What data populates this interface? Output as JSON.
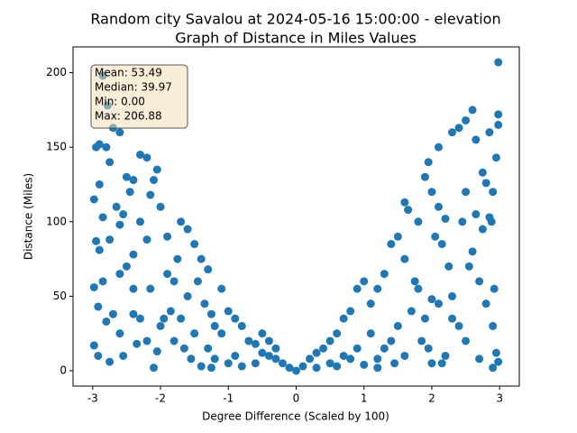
{
  "chart_data": {
    "type": "scatter",
    "title": "Random city Savalou at 2024-05-16 15:00:00  - elevation",
    "subtitle": "Graph of Distance in Miles Values",
    "x_label": "Degree Difference (Scaled by 100)",
    "y_label": "Distance (Miles)",
    "annotation": [
      "Mean: 53.49",
      "Median: 39.97",
      "Min: 0.00",
      "Max: 206.88"
    ],
    "color": "#1f77b4",
    "xlim": [
      -3.29,
      3.29
    ],
    "ylim": [
      -10.3,
      217.3
    ],
    "xticks": [
      -3,
      -2,
      -1,
      0,
      1,
      2,
      3
    ],
    "yticks": [
      0,
      50,
      100,
      150,
      200
    ],
    "x": [
      -2.85,
      -2.78,
      -2.9,
      -2.95,
      -2.8,
      -2.7,
      -2.6,
      -2.75,
      -2.98,
      -2.9,
      -2.85,
      -2.95,
      -2.9,
      -2.75,
      -2.6,
      -2.55,
      -2.45,
      -2.4,
      -2.3,
      -2.2,
      -2.05,
      -2.1,
      -2.15,
      -2.0,
      -2.3,
      -2.2,
      -2.4,
      -2.5,
      -2.6,
      -2.98,
      -2.92,
      -2.8,
      -2.7,
      -2.6,
      -2.98,
      -2.92,
      -2.75,
      -2.55,
      -2.4,
      -2.3,
      -2.35,
      -2.2,
      -2.05,
      -2.1,
      -1.95,
      -1.85,
      -1.8,
      -1.75,
      -1.9,
      -1.7,
      -1.6,
      -1.5,
      -1.4,
      -1.3,
      -1.45,
      -1.6,
      -1.7,
      -1.8,
      -1.65,
      -1.55,
      -1.4,
      -1.35,
      -1.25,
      -1.2,
      -1.1,
      -1.0,
      -0.9,
      -0.8,
      -0.7,
      -0.6,
      -0.5,
      -0.4,
      -0.3,
      -0.2,
      -0.1,
      0.0,
      -1.3,
      -1.2,
      -1.0,
      -0.9,
      -0.8,
      -0.6,
      -0.5,
      -0.4,
      -0.3,
      -1.5,
      -2.5,
      -2.65,
      -2.85,
      -2.4,
      -2.15,
      -1.9,
      -2.0,
      -1.1,
      -1.25,
      0.1,
      0.2,
      0.3,
      0.4,
      0.5,
      0.6,
      0.7,
      0.8,
      0.9,
      1.0,
      0.5,
      0.7,
      0.9,
      1.0,
      1.1,
      1.2,
      1.3,
      1.4,
      1.5,
      1.6,
      1.5,
      1.4,
      1.3,
      1.2,
      1.45,
      1.6,
      1.7,
      1.75,
      1.8,
      1.9,
      1.85,
      1.95,
      2.0,
      1.65,
      1.6,
      1.8,
      1.9,
      1.95,
      2.0,
      2.1,
      2.2,
      2.15,
      2.25,
      2.05,
      2.1,
      2.3,
      2.4,
      2.5,
      2.6,
      2.65,
      2.75,
      2.8,
      2.85,
      2.95,
      2.98,
      2.98,
      2.98,
      2.9,
      2.85,
      2.75,
      2.6,
      2.55,
      2.7,
      2.8,
      2.9,
      2.95,
      2.98,
      2.9,
      2.5,
      2.4,
      2.3,
      2.2,
      2.15,
      2.0,
      2.1,
      2.3,
      2.5,
      2.45,
      2.65,
      2.92,
      2.88,
      0.3,
      0.6,
      0.8,
      1.2,
      1.1,
      2.7
    ],
    "values": [
      198,
      178,
      152,
      150,
      150,
      163,
      160,
      140,
      115,
      125,
      103,
      87,
      81,
      88,
      98,
      105,
      120,
      128,
      145,
      143,
      135,
      128,
      118,
      110,
      100,
      88,
      78,
      70,
      65,
      56,
      43,
      33,
      38,
      25,
      17,
      10,
      6,
      10,
      38,
      35,
      18,
      20,
      13,
      2,
      35,
      40,
      60,
      75,
      90,
      100,
      95,
      85,
      75,
      68,
      60,
      50,
      35,
      20,
      15,
      8,
      3,
      45,
      38,
      30,
      25,
      40,
      35,
      30,
      20,
      18,
      12,
      10,
      8,
      5,
      2,
      0,
      15,
      8,
      5,
      10,
      3,
      5,
      25,
      20,
      15,
      25,
      130,
      110,
      60,
      55,
      55,
      65,
      30,
      55,
      2,
      3,
      8,
      12,
      15,
      20,
      25,
      35,
      40,
      55,
      60,
      5,
      10,
      15,
      4,
      45,
      55,
      65,
      85,
      90,
      75,
      30,
      20,
      15,
      8,
      5,
      10,
      40,
      60,
      55,
      35,
      20,
      15,
      5,
      108,
      113,
      100,
      130,
      140,
      120,
      110,
      102,
      85,
      70,
      90,
      150,
      160,
      163,
      168,
      175,
      155,
      133,
      126,
      160,
      143,
      172,
      165,
      207,
      120,
      103,
      95,
      80,
      70,
      60,
      45,
      30,
      12,
      6,
      2,
      20,
      30,
      50,
      10,
      5,
      48,
      45,
      35,
      120,
      100,
      105,
      55,
      100,
      2,
      3,
      8,
      2,
      25,
      8
    ]
  }
}
